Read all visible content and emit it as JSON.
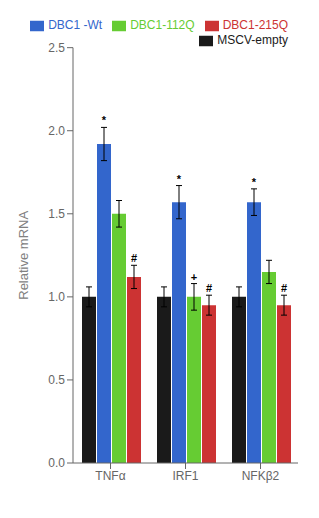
{
  "chart_data": {
    "type": "bar",
    "categories": [
      "TNFα",
      "IRF1",
      "NFKβ2"
    ],
    "series": [
      {
        "name": "MSCV-empty",
        "color": "#1a1a1a",
        "values": [
          1.0,
          1.0,
          1.0
        ],
        "errors": [
          0.06,
          0.06,
          0.06
        ]
      },
      {
        "name": "DBC1 -Wt",
        "color": "#3366cc",
        "values": [
          1.92,
          1.57,
          1.57
        ],
        "errors": [
          0.1,
          0.1,
          0.08
        ]
      },
      {
        "name": "DBC1-112Q",
        "color": "#66cc33",
        "values": [
          1.5,
          1.0,
          1.15
        ],
        "errors": [
          0.08,
          0.08,
          0.07
        ]
      },
      {
        "name": "DBC1-215Q",
        "color": "#cc3333",
        "values": [
          1.12,
          0.95,
          0.95
        ],
        "errors": [
          0.07,
          0.06,
          0.06
        ]
      }
    ],
    "ylim": [
      0.0,
      2.5
    ],
    "yticks": [
      {
        "value": 0,
        "label": "0.0"
      },
      0.5,
      {
        "value": 1,
        "label": "1.0"
      },
      1.5,
      {
        "value": 2,
        "label": "2.0"
      },
      2.5
    ],
    "ylabel": "Relative mRNA",
    "legend": "upper right",
    "grid": false,
    "annotations": [
      {
        "text": "*",
        "category": "TNFα",
        "series": "DBC1 -Wt"
      },
      {
        "text": "#",
        "category": "TNFα",
        "series": "DBC1-215Q"
      },
      {
        "text": "*",
        "category": "IRF1",
        "series": "DBC1 -Wt"
      },
      {
        "text": "+",
        "category": "IRF1",
        "series": "DBC1-112Q"
      },
      {
        "text": "#",
        "category": "IRF1",
        "series": "DBC1-215Q"
      },
      {
        "text": "*",
        "category": "NFKβ2",
        "series": "DBC1 -Wt"
      },
      {
        "text": "#",
        "category": "NFKβ2",
        "series": "DBC1-215Q"
      }
    ]
  }
}
